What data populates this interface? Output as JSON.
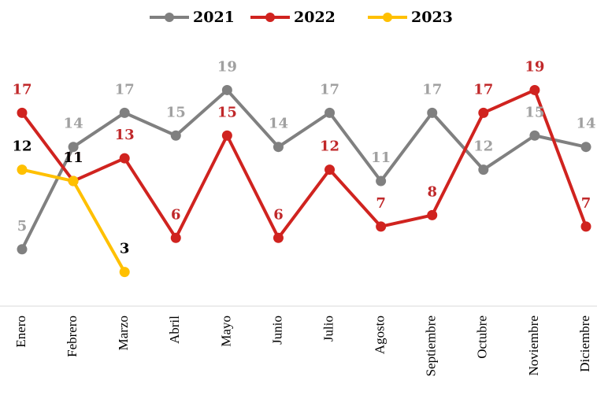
{
  "chart_data": {
    "type": "line",
    "categories": [
      "Enero",
      "Febrero",
      "Marzo",
      "Abril",
      "Mayo",
      "Junio",
      "Julio",
      "Agosto",
      "Septiembre",
      "Octubre",
      "Noviembre",
      "Diciembre"
    ],
    "series": [
      {
        "name": "2021",
        "color": "#808080",
        "label_color": "#a0a0a0",
        "values": [
          5,
          14,
          17,
          15,
          19,
          14,
          17,
          11,
          17,
          12,
          15,
          14
        ]
      },
      {
        "name": "2022",
        "color": "#d0231f",
        "label_color": "#c0282a",
        "values": [
          17,
          11,
          13,
          6,
          15,
          6,
          12,
          7,
          8,
          17,
          19,
          7
        ]
      },
      {
        "name": "2023",
        "color": "#ffc000",
        "label_color": "#000000",
        "values": [
          12,
          11,
          3,
          null,
          null,
          null,
          null,
          null,
          null,
          null,
          null,
          null
        ]
      }
    ],
    "ylim": [
      0,
      20
    ],
    "legend": "top"
  }
}
